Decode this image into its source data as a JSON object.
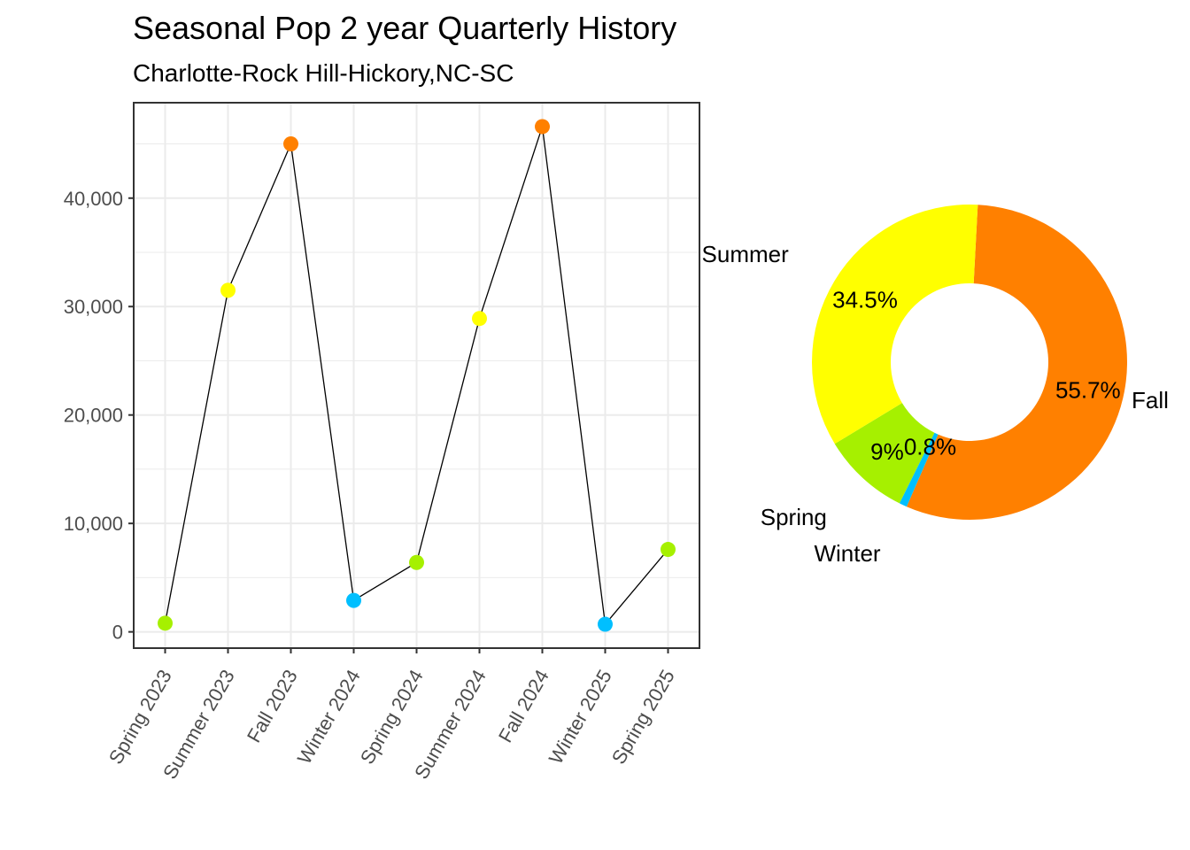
{
  "title": "Seasonal Pop 2 year Quarterly History",
  "subtitle": "Charlotte-Rock Hill-Hickory,NC-SC",
  "colors": {
    "Spring": "#A6F000",
    "Summer": "#FFFF00",
    "Fall": "#FF8000",
    "Winter": "#00BFFF",
    "line": "#000000",
    "grid": "#EBEBEB",
    "panel_border": "#333333"
  },
  "chart_data": [
    {
      "type": "line",
      "categories": [
        "Spring 2023",
        "Summer 2023",
        "Fall 2023",
        "Winter 2024",
        "Spring 2024",
        "Summer 2024",
        "Fall 2024",
        "Winter 2025",
        "Spring 2025"
      ],
      "seasons": [
        "Spring",
        "Summer",
        "Fall",
        "Winter",
        "Spring",
        "Summer",
        "Fall",
        "Winter",
        "Spring"
      ],
      "values": [
        800,
        31500,
        45000,
        2900,
        6400,
        28900,
        46600,
        700,
        7600
      ],
      "ylim": [
        -1500,
        48800
      ],
      "yticks": [
        0,
        10000,
        20000,
        30000,
        40000
      ],
      "ytick_labels": [
        "0",
        "10,000",
        "20,000",
        "30,000",
        "40,000"
      ],
      "xlabel": "",
      "ylabel": "",
      "grid": true,
      "legend": "none"
    },
    {
      "type": "pie",
      "donut": true,
      "slices": [
        {
          "name": "Fall",
          "value": 55.7,
          "label": "55.7%"
        },
        {
          "name": "Winter",
          "value": 0.8,
          "label": "0.8%"
        },
        {
          "name": "Spring",
          "value": 9,
          "label": "9%"
        },
        {
          "name": "Summer",
          "value": 34.5,
          "label": "34.5%"
        }
      ]
    }
  ]
}
